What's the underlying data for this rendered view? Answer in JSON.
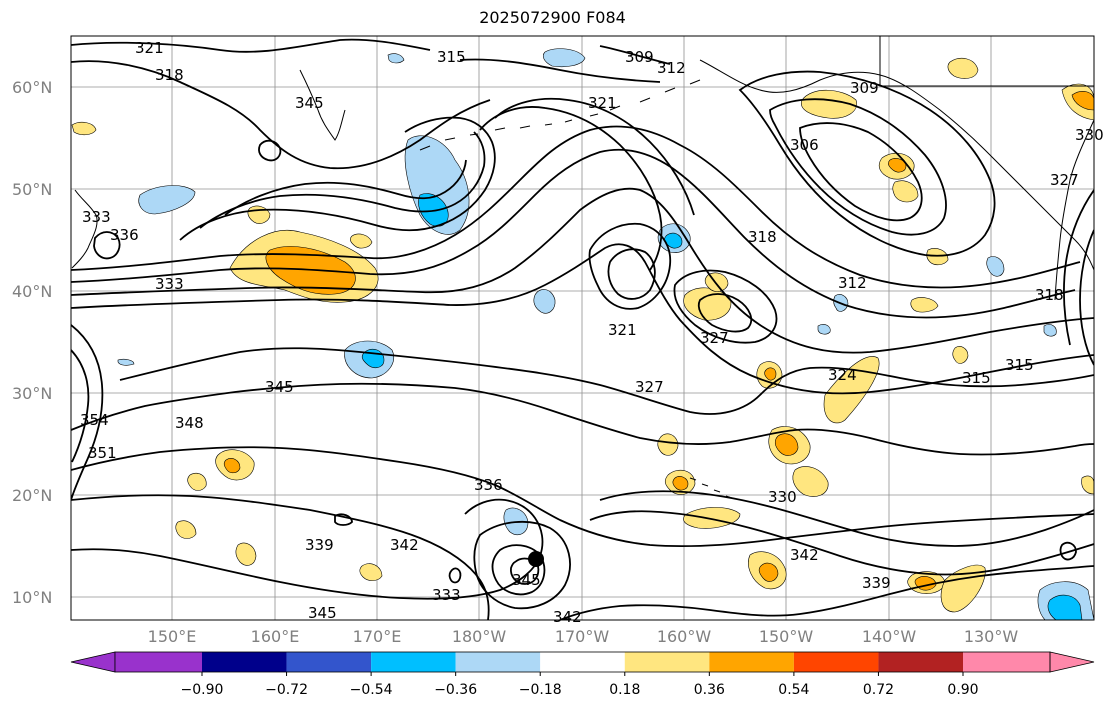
{
  "title": "2025072900 F084",
  "lat_labels": [
    "60°N",
    "50°N",
    "40°N",
    "30°N",
    "20°N",
    "10°N"
  ],
  "lon_labels": [
    "150°E",
    "160°E",
    "170°E",
    "180°W",
    "170°W",
    "160°W",
    "150°W",
    "140°W",
    "130°W"
  ],
  "contour_labels": [
    "321",
    "318",
    "315",
    "309",
    "312",
    "321",
    "309",
    "306",
    "330",
    "327",
    "318",
    "333",
    "336",
    "345",
    "333",
    "318",
    "312",
    "321",
    "327",
    "324",
    "315",
    "315",
    "345",
    "348",
    "354",
    "351",
    "327",
    "336",
    "330",
    "339",
    "342",
    "345",
    "333",
    "342",
    "339",
    "342",
    "345"
  ],
  "colorbar": {
    "ticks": [
      "−0.90",
      "−0.72",
      "−0.54",
      "−0.36",
      "−0.18",
      "0.18",
      "0.36",
      "0.54",
      "0.72",
      "0.90"
    ],
    "colors": [
      "#9932cc",
      "#00008b",
      "#3355cc",
      "#00bfff",
      "#add8f6",
      "#ffffff",
      "#ffe680",
      "#ffa500",
      "#ff4500",
      "#b22222",
      "#ff88aa"
    ]
  }
}
